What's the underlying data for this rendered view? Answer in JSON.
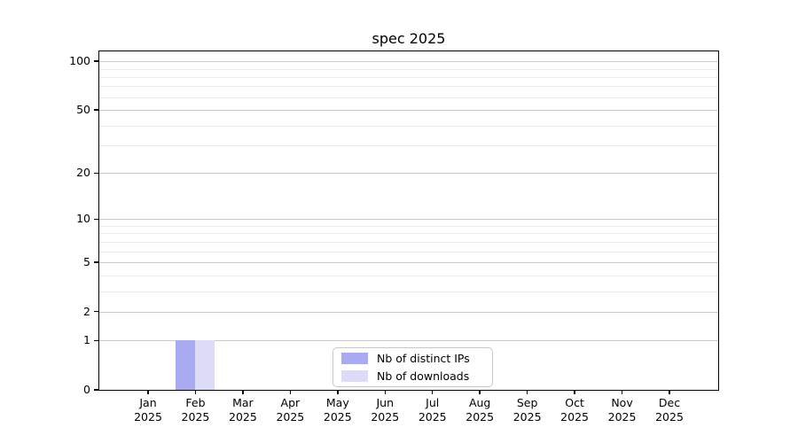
{
  "chart_data": {
    "type": "bar",
    "title": "spec 2025",
    "categories": [
      "Jan 2025",
      "Feb 2025",
      "Mar 2025",
      "Apr 2025",
      "May 2025",
      "Jun 2025",
      "Jul 2025",
      "Aug 2025",
      "Sep 2025",
      "Oct 2025",
      "Nov 2025",
      "Dec 2025"
    ],
    "series": [
      {
        "name": "Nb of distinct IPs",
        "color": "#aaaaf2",
        "values": [
          0,
          1,
          0,
          0,
          0,
          0,
          0,
          0,
          0,
          0,
          0,
          0
        ]
      },
      {
        "name": "Nb of downloads",
        "color": "#dcdcf8",
        "values": [
          0,
          1,
          0,
          0,
          0,
          0,
          0,
          0,
          0,
          0,
          0,
          0
        ]
      }
    ],
    "y_axis": {
      "scale": "log1p",
      "major_ticks": [
        0,
        1,
        2,
        5,
        10,
        20,
        50,
        100
      ],
      "minor_gridlines": [
        3,
        4,
        6,
        7,
        8,
        9,
        30,
        40,
        60,
        70,
        80,
        90
      ],
      "ylim": [
        0,
        115
      ]
    },
    "x_axis": {
      "tick_label_lines": 2
    },
    "legend": {
      "position": "lower center inside",
      "entries": [
        "Nb of distinct IPs",
        "Nb of downloads"
      ]
    },
    "grid": {
      "major": true,
      "minor": true
    },
    "colors": {
      "background": "#ffffff",
      "axis": "#000000",
      "grid_major": "#c9c9c9",
      "grid_minor": "#ededed",
      "text": "#000000"
    }
  }
}
